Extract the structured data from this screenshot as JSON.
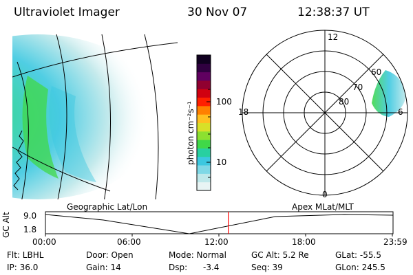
{
  "header": {
    "instrument": "Ultraviolet Imager",
    "date": "30 Nov 07",
    "time": "12:38:37 UT"
  },
  "colorbar": {
    "label": "photon cm⁻²s⁻¹",
    "ticks": [
      "100",
      "10"
    ],
    "scale": "log",
    "colors": [
      "#e8f4f4",
      "#bfe8ea",
      "#7fd8e6",
      "#3cc8e0",
      "#28d0a0",
      "#40d848",
      "#8ce030",
      "#d8e028",
      "#ffc020",
      "#ff8000",
      "#ff2000",
      "#d00010",
      "#900030",
      "#600060",
      "#300040",
      "#100020"
    ]
  },
  "polar_plot": {
    "mlt_labels": [
      "12",
      "18",
      "6",
      "0"
    ],
    "mlat_labels": [
      "60",
      "70",
      "80"
    ]
  },
  "timeline": {
    "left_label": "Geographic Lat/Lon",
    "right_label": "Apex MLat/MLT",
    "y_axis_label": "GC Alt",
    "y_ticks": [
      "9.0",
      "1.8"
    ],
    "x_ticks": [
      "00:00",
      "06:00",
      "12:00",
      "18:00",
      "23:59"
    ],
    "current_time_marker": "12:38:37",
    "marker_color": "#ff0000"
  },
  "info": {
    "filter": "Flt: LBHL",
    "ip": "IP: 36.0",
    "door": "Door: Open",
    "gain": "Gain: 14",
    "mode": "Mode: Normal",
    "dsp_label": "Dsp:",
    "dsp_value": "-3.4",
    "gc_alt": "GC Alt: 5.2 Re",
    "seq": "Seq: 39",
    "glat": "GLat: -55.5",
    "glon": "GLon: 245.5"
  }
}
